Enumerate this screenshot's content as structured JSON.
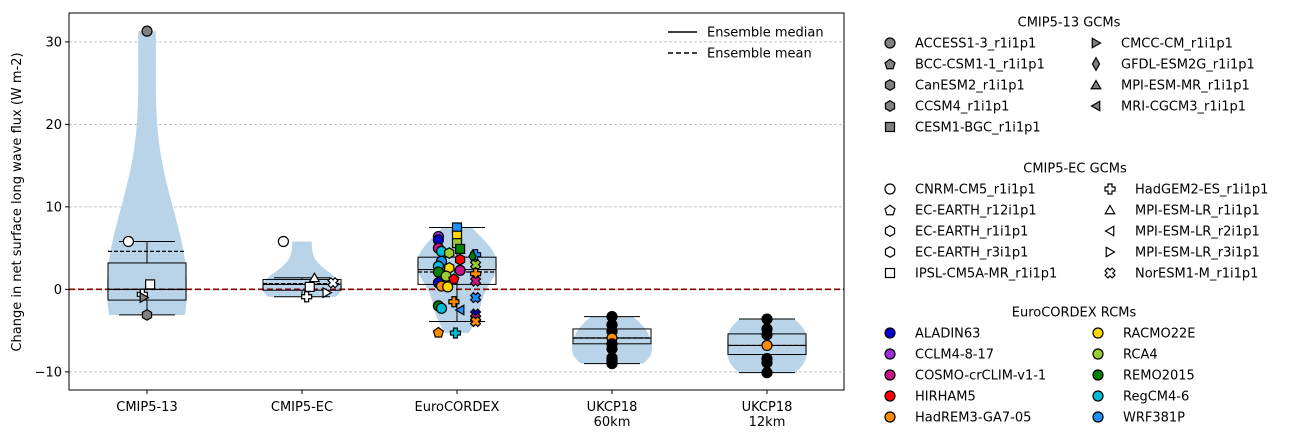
{
  "chart_data": {
    "type": "box-violin-strip",
    "ylabel": "Change in net surface long wave flux (W m-2)",
    "ylim": [
      -12.2,
      33.5
    ],
    "yticks": [
      -10,
      0,
      10,
      20,
      30
    ],
    "grid": "y",
    "zero_line_color": "#8b0000",
    "violin_color": "#b9d4e8",
    "categories": [
      {
        "lines": [
          "CMIP5-13"
        ]
      },
      {
        "lines": [
          "CMIP5-EC"
        ]
      },
      {
        "lines": [
          "EuroCORDEX"
        ]
      },
      {
        "lines": [
          "UKCP18",
          "60km"
        ]
      },
      {
        "lines": [
          "UKCP18",
          "12km"
        ]
      }
    ],
    "stats": [
      {
        "q1": -1.3,
        "median": 0.0,
        "q3": 3.2,
        "whislo": -3.1,
        "whishi": 5.8,
        "mean": 4.6,
        "min": -3.1,
        "max": 31.3
      },
      {
        "q1": -0.1,
        "median": 0.6,
        "q3": 1.2,
        "whislo": -0.9,
        "whishi": 1.4,
        "mean": 0.7,
        "min": -0.9,
        "max": 5.8
      },
      {
        "q1": 0.6,
        "median": 2.4,
        "q3": 3.9,
        "whislo": -3.9,
        "whishi": 7.5,
        "mean": 2.1,
        "min": -5.3,
        "max": 7.5
      },
      {
        "q1": -6.6,
        "median": -5.9,
        "q3": -4.8,
        "whislo": -9.0,
        "whishi": -3.3,
        "mean": -5.9,
        "min": -9.0,
        "max": -3.3
      },
      {
        "q1": -7.9,
        "median": -6.8,
        "q3": -5.4,
        "whislo": -10.1,
        "whishi": -3.6,
        "mean": -6.8,
        "min": -10.1,
        "max": -3.6
      }
    ],
    "points": [
      {
        "cat": 0,
        "y": 31.3,
        "marker": "circle",
        "fill": "#808080"
      },
      {
        "cat": 0,
        "y": 5.8,
        "marker": "circle",
        "fill": "#ffffff",
        "dx": -0.12
      },
      {
        "cat": 0,
        "y": 0.6,
        "marker": "square",
        "fill": "#ffffff",
        "dx": 0.02
      },
      {
        "cat": 0,
        "y": -0.6,
        "marker": "plus",
        "fill": "#ffffff",
        "dx": -0.03
      },
      {
        "cat": 0,
        "y": -1.0,
        "marker": "tri-right",
        "fill": "#808080",
        "dx": -0.02
      },
      {
        "cat": 0,
        "y": -3.1,
        "marker": "hexagon",
        "fill": "#808080"
      },
      {
        "cat": 1,
        "y": 5.8,
        "marker": "circle",
        "fill": "#ffffff",
        "dx": -0.12
      },
      {
        "cat": 1,
        "y": 1.4,
        "marker": "tri-up",
        "fill": "#ffffff",
        "dx": 0.08
      },
      {
        "cat": 1,
        "y": 0.8,
        "marker": "cross",
        "fill": "#ffffff",
        "dx": 0.2
      },
      {
        "cat": 1,
        "y": 0.3,
        "marker": "square",
        "fill": "#ffffff",
        "dx": 0.05
      },
      {
        "cat": 1,
        "y": -0.4,
        "marker": "tri-right",
        "fill": "#ffffff",
        "dx": 0.16
      },
      {
        "cat": 1,
        "y": -0.9,
        "marker": "plus",
        "fill": "#ffffff",
        "dx": 0.03
      },
      {
        "cat": 2,
        "y": 7.5,
        "marker": "square",
        "fill": "#1e90ff"
      },
      {
        "cat": 2,
        "y": 6.5,
        "marker": "square",
        "fill": "#ffd700"
      },
      {
        "cat": 2,
        "y": 6.4,
        "marker": "circle",
        "fill": "#9b30d9",
        "dx": -0.12
      },
      {
        "cat": 2,
        "y": 6.0,
        "marker": "circle",
        "fill": "#0000cd",
        "dx": -0.12
      },
      {
        "cat": 2,
        "y": 5.6,
        "marker": "square",
        "fill": "#9acd32"
      },
      {
        "cat": 2,
        "y": 5.0,
        "marker": "circle",
        "fill": "#c71585",
        "dx": -0.12
      },
      {
        "cat": 2,
        "y": 4.9,
        "marker": "square",
        "fill": "#008000",
        "dx": 0.02
      },
      {
        "cat": 2,
        "y": 4.6,
        "marker": "circle",
        "fill": "#00bcd4",
        "dx": -0.1
      },
      {
        "cat": 2,
        "y": 4.4,
        "marker": "hexagon",
        "fill": "#9acd32",
        "dx": -0.05
      },
      {
        "cat": 2,
        "y": 4.2,
        "marker": "plus",
        "fill": "#1e90ff",
        "dx": 0.12
      },
      {
        "cat": 2,
        "y": 4.0,
        "marker": "diamond",
        "fill": "#008000",
        "dx": 0.1
      },
      {
        "cat": 2,
        "y": 3.6,
        "marker": "hexagon",
        "fill": "#ff0000",
        "dx": 0.02
      },
      {
        "cat": 2,
        "y": 3.4,
        "marker": "circle",
        "fill": "#1e90ff",
        "dx": -0.1
      },
      {
        "cat": 2,
        "y": 3.0,
        "marker": "cross",
        "fill": "#9acd32",
        "dx": 0.12
      },
      {
        "cat": 2,
        "y": 2.8,
        "marker": "circle",
        "fill": "#00bcd4",
        "dx": -0.12
      },
      {
        "cat": 2,
        "y": 2.6,
        "marker": "hexagon",
        "fill": "#ffd700",
        "dx": -0.05
      },
      {
        "cat": 2,
        "y": 2.3,
        "marker": "circle",
        "fill": "#c71585",
        "dx": 0.02
      },
      {
        "cat": 2,
        "y": 2.1,
        "marker": "circle",
        "fill": "#008000",
        "dx": -0.12
      },
      {
        "cat": 2,
        "y": 1.9,
        "marker": "plus",
        "fill": "#ff8c00",
        "dx": 0.12
      },
      {
        "cat": 2,
        "y": 1.6,
        "marker": "circle",
        "fill": "#9acd32",
        "dx": -0.07
      },
      {
        "cat": 2,
        "y": 1.3,
        "marker": "pentagon",
        "fill": "#ff0000",
        "dx": -0.02
      },
      {
        "cat": 2,
        "y": 1.0,
        "marker": "cross",
        "fill": "#c71585",
        "dx": 0.12
      },
      {
        "cat": 2,
        "y": 0.8,
        "marker": "circle",
        "fill": "#0000cd",
        "dx": -0.12
      },
      {
        "cat": 2,
        "y": 0.4,
        "marker": "circle",
        "fill": "#ff8c00",
        "dx": -0.1
      },
      {
        "cat": 2,
        "y": 0.3,
        "marker": "circle",
        "fill": "#ffd700",
        "dx": -0.06
      },
      {
        "cat": 2,
        "y": -1.0,
        "marker": "cross",
        "fill": "#1e90ff",
        "dx": 0.12
      },
      {
        "cat": 2,
        "y": -1.5,
        "marker": "plus",
        "fill": "#ff8c00",
        "dx": -0.02
      },
      {
        "cat": 2,
        "y": -2.0,
        "marker": "circle",
        "fill": "#008000",
        "dx": -0.12
      },
      {
        "cat": 2,
        "y": -2.3,
        "marker": "circle",
        "fill": "#00bcd4",
        "dx": -0.1
      },
      {
        "cat": 2,
        "y": -2.5,
        "marker": "tri-left",
        "fill": "#1e90ff",
        "dx": 0.02
      },
      {
        "cat": 2,
        "y": -3.0,
        "marker": "cross",
        "fill": "#0000cd",
        "dx": 0.12
      },
      {
        "cat": 2,
        "y": -3.5,
        "marker": "cross",
        "fill": "#c71585",
        "dx": 0.12
      },
      {
        "cat": 2,
        "y": -3.9,
        "marker": "cross",
        "fill": "#ff8c00",
        "dx": 0.12
      },
      {
        "cat": 2,
        "y": -5.2,
        "marker": "pentagon",
        "fill": "#ff8c00",
        "dx": -0.12
      },
      {
        "cat": 2,
        "y": -5.3,
        "marker": "plus",
        "fill": "#00bcd4",
        "dx": -0.01
      },
      {
        "cat": 3,
        "y": -3.3,
        "marker": "circle",
        "fill": "#000000"
      },
      {
        "cat": 3,
        "y": -4.3,
        "marker": "circle",
        "fill": "#000000"
      },
      {
        "cat": 3,
        "y": -5.1,
        "marker": "circle",
        "fill": "#000000"
      },
      {
        "cat": 3,
        "y": -5.9,
        "marker": "circle",
        "fill": "#ff8c00"
      },
      {
        "cat": 3,
        "y": -6.6,
        "marker": "circle",
        "fill": "#000000"
      },
      {
        "cat": 3,
        "y": -7.2,
        "marker": "circle",
        "fill": "#000000"
      },
      {
        "cat": 3,
        "y": -8.3,
        "marker": "circle",
        "fill": "#000000"
      },
      {
        "cat": 3,
        "y": -8.7,
        "marker": "circle",
        "fill": "#000000"
      },
      {
        "cat": 3,
        "y": -9.0,
        "marker": "circle",
        "fill": "#000000"
      },
      {
        "cat": 4,
        "y": -3.6,
        "marker": "circle",
        "fill": "#000000"
      },
      {
        "cat": 4,
        "y": -4.8,
        "marker": "circle",
        "fill": "#000000"
      },
      {
        "cat": 4,
        "y": -5.5,
        "marker": "circle",
        "fill": "#000000"
      },
      {
        "cat": 4,
        "y": -6.8,
        "marker": "circle",
        "fill": "#ff8c00"
      },
      {
        "cat": 4,
        "y": -8.4,
        "marker": "circle",
        "fill": "#000000"
      },
      {
        "cat": 4,
        "y": -8.9,
        "marker": "circle",
        "fill": "#000000"
      },
      {
        "cat": 4,
        "y": -10.1,
        "marker": "circle",
        "fill": "#000000"
      }
    ],
    "inner_legend": [
      {
        "label": "Ensemble median",
        "style": "solid"
      },
      {
        "label": "Ensemble mean",
        "style": "dashed"
      }
    ],
    "legend_groups": [
      {
        "title": "CMIP5-13 GCMs",
        "entries": [
          {
            "label": "ACCESS1-3_r1i1p1",
            "marker": "circle",
            "fill": "#808080"
          },
          {
            "label": "BCC-CSM1-1_r1i1p1",
            "marker": "pentagon",
            "fill": "#808080"
          },
          {
            "label": "CanESM2_r1i1p1",
            "marker": "hexagon",
            "fill": "#808080"
          },
          {
            "label": "CCSM4_r1i1p1",
            "marker": "hexagon",
            "fill": "#808080"
          },
          {
            "label": "CESM1-BGC_r1i1p1",
            "marker": "square",
            "fill": "#808080"
          },
          {
            "label": "CMCC-CM_r1i1p1",
            "marker": "tri-right",
            "fill": "#808080"
          },
          {
            "label": "GFDL-ESM2G_r1i1p1",
            "marker": "diamond",
            "fill": "#808080"
          },
          {
            "label": "MPI-ESM-MR_r1i1p1",
            "marker": "tri-up",
            "fill": "#808080"
          },
          {
            "label": "MRI-CGCM3_r1i1p1",
            "marker": "tri-left",
            "fill": "#808080"
          }
        ]
      },
      {
        "title": "CMIP5-EC GCMs",
        "entries": [
          {
            "label": "CNRM-CM5_r1i1p1",
            "marker": "circle",
            "fill": "#ffffff"
          },
          {
            "label": "EC-EARTH_r12i1p1",
            "marker": "pentagon",
            "fill": "#ffffff"
          },
          {
            "label": "EC-EARTH_r1i1p1",
            "marker": "hexagon",
            "fill": "#ffffff"
          },
          {
            "label": "EC-EARTH_r3i1p1",
            "marker": "hexagon",
            "fill": "#ffffff"
          },
          {
            "label": "IPSL-CM5A-MR_r1i1p1",
            "marker": "square",
            "fill": "#ffffff"
          },
          {
            "label": "HadGEM2-ES_r1i1p1",
            "marker": "plus",
            "fill": "#ffffff"
          },
          {
            "label": "MPI-ESM-LR_r1i1p1",
            "marker": "tri-up",
            "fill": "#ffffff"
          },
          {
            "label": "MPI-ESM-LR_r2i1p1",
            "marker": "tri-left",
            "fill": "#ffffff"
          },
          {
            "label": "MPI-ESM-LR_r3i1p1",
            "marker": "tri-right",
            "fill": "#ffffff"
          },
          {
            "label": "NorESM1-M_r1i1p1",
            "marker": "cross",
            "fill": "#ffffff"
          }
        ]
      },
      {
        "title": "EuroCORDEX RCMs",
        "entries": [
          {
            "label": "ALADIN63",
            "marker": "circle",
            "fill": "#0000cd"
          },
          {
            "label": "CCLM4-8-17",
            "marker": "circle",
            "fill": "#9b30d9"
          },
          {
            "label": "COSMO-crCLIM-v1-1",
            "marker": "circle",
            "fill": "#c71585"
          },
          {
            "label": "HIRHAM5",
            "marker": "circle",
            "fill": "#ff0000"
          },
          {
            "label": "HadREM3-GA7-05",
            "marker": "circle",
            "fill": "#ff8c00"
          },
          {
            "label": "RACMO22E",
            "marker": "circle",
            "fill": "#ffd700"
          },
          {
            "label": "RCA4",
            "marker": "circle",
            "fill": "#9acd32"
          },
          {
            "label": "REMO2015",
            "marker": "circle",
            "fill": "#008000"
          },
          {
            "label": "RegCM4-6",
            "marker": "circle",
            "fill": "#00bcd4"
          },
          {
            "label": "WRF381P",
            "marker": "circle",
            "fill": "#1e90ff"
          }
        ]
      }
    ]
  }
}
